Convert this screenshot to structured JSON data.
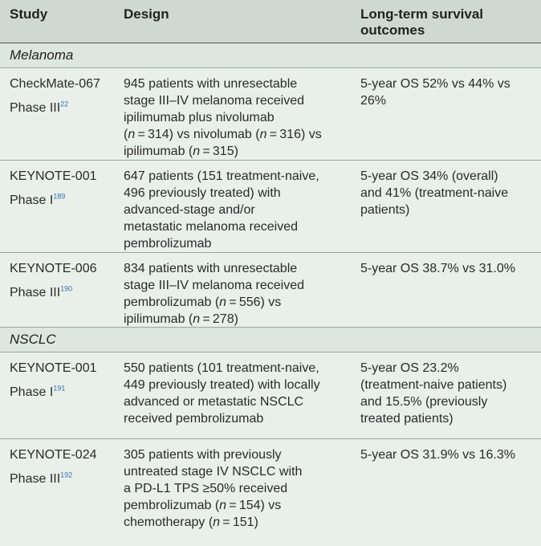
{
  "header": {
    "study": "Study",
    "design": "Design",
    "outcomes_line1": "Long-term survival",
    "outcomes_line2": "outcomes"
  },
  "sections": {
    "melanoma": "Melanoma",
    "nsclc": "NSCLC"
  },
  "rows": [
    {
      "study": "CheckMate-067",
      "phase": "Phase III",
      "ref": "22",
      "design": [
        "945 patients with unresectable",
        "stage III–IV melanoma received",
        "ipilimumab plus nivolumab",
        [
          "(",
          "n",
          " = 314) vs nivolumab (",
          "n",
          " = 316) vs"
        ],
        [
          "ipilimumab (",
          "n",
          " = 315)"
        ]
      ],
      "outcomes": [
        "5-year OS 52% vs 44% vs",
        "26%"
      ]
    },
    {
      "study": "KEYNOTE-001",
      "phase": "Phase I",
      "ref": "189",
      "design": [
        "647 patients (151 treatment-naive,",
        "496 previously treated) with",
        "advanced-stage and/or",
        "metastatic melanoma received",
        "pembrolizumab"
      ],
      "outcomes": [
        "5-year OS 34% (overall)",
        "and 41% (treatment-naive",
        "patients)"
      ]
    },
    {
      "study": "KEYNOTE-006",
      "phase": "Phase III",
      "ref": "190",
      "design": [
        "834 patients with unresectable",
        "stage III–IV melanoma received",
        [
          "pembrolizumab (",
          "n",
          " = 556) vs"
        ],
        [
          "ipilimumab (",
          "n",
          " = 278)"
        ]
      ],
      "outcomes": [
        "5-year OS 38.7% vs 31.0%"
      ]
    },
    {
      "study": "KEYNOTE-001",
      "phase": "Phase I",
      "ref": "191",
      "design": [
        "550 patients (101 treatment-naive,",
        "449 previously treated) with locally",
        "advanced or metastatic NSCLC",
        "received pembrolizumab"
      ],
      "outcomes": [
        "5-year OS 23.2%",
        "(treatment-naive patients)",
        "and 15.5% (previously",
        "treated patients)"
      ]
    },
    {
      "study": "KEYNOTE-024",
      "phase": "Phase III",
      "ref": "192",
      "design": [
        "305 patients with previously",
        "untreated stage IV NSCLC with",
        "a PD-L1 TPS ≥50% received",
        [
          "pembrolizumab (",
          "n",
          " = 154) vs"
        ],
        [
          "chemotherapy (",
          "n",
          " = 151)"
        ]
      ],
      "outcomes": [
        "5-year OS 31.9% vs 16.3%"
      ]
    }
  ]
}
